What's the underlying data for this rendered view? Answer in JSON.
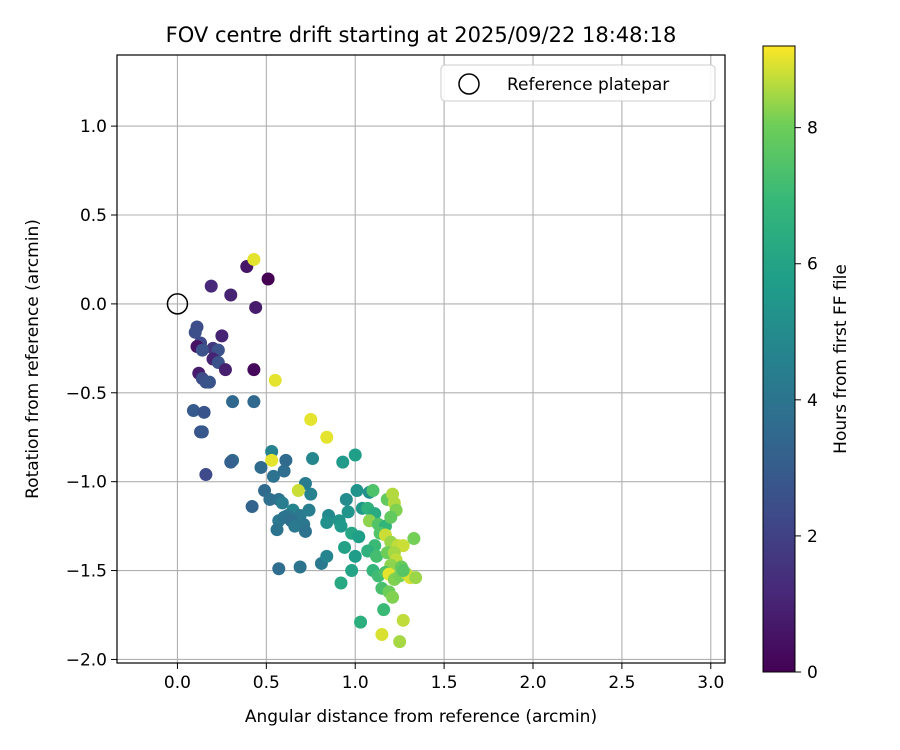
{
  "chart_data": {
    "type": "scatter",
    "title": "FOV centre drift starting at 2025/09/22 18:48:18",
    "xlabel": "Angular distance from reference (arcmin)",
    "ylabel": "Rotation from reference (arcmin)",
    "xlim": [
      -0.34,
      3.08
    ],
    "ylim": [
      -2.02,
      1.4
    ],
    "xticks": [
      0.0,
      0.5,
      1.0,
      1.5,
      2.0,
      2.5,
      3.0
    ],
    "xtick_labels": [
      "0.0",
      "0.5",
      "1.0",
      "1.5",
      "2.0",
      "2.5",
      "3.0"
    ],
    "yticks": [
      -2.0,
      -1.5,
      -1.0,
      -0.5,
      0.0,
      0.5,
      1.0
    ],
    "ytick_labels": [
      "−2.0",
      "−1.5",
      "−1.0",
      "−0.5",
      "0.0",
      "0.5",
      "1.0"
    ],
    "grid": true,
    "legend": {
      "position": "top-right",
      "entries": [
        "Reference platepar"
      ]
    },
    "reference_point": {
      "x": 0.0,
      "y": 0.0
    },
    "colorbar": {
      "label": "Hours from first FF file",
      "range": [
        0,
        9.2
      ],
      "ticks": [
        0,
        2,
        4,
        6,
        8
      ],
      "tick_labels": [
        "0",
        "2",
        "4",
        "6",
        "8"
      ],
      "colormap": "viridis"
    },
    "series": [
      {
        "name": "FOV centre drift",
        "points": [
          [
            0.51,
            0.14,
            0.0
          ],
          [
            0.39,
            0.21,
            0.6
          ],
          [
            0.44,
            -0.02,
            0.8
          ],
          [
            0.3,
            0.05,
            1.0
          ],
          [
            0.19,
            0.1,
            1.2
          ],
          [
            0.11,
            -0.13,
            2.4
          ],
          [
            0.1,
            -0.16,
            2.5
          ],
          [
            0.13,
            -0.22,
            2.3
          ],
          [
            0.25,
            -0.18,
            1.0
          ],
          [
            0.2,
            -0.25,
            1.7
          ],
          [
            0.23,
            -0.26,
            2.6
          ],
          [
            0.11,
            -0.24,
            0.5
          ],
          [
            0.14,
            -0.26,
            2.6
          ],
          [
            0.2,
            -0.31,
            1.0
          ],
          [
            0.23,
            -0.33,
            2.6
          ],
          [
            0.27,
            -0.37,
            0.9
          ],
          [
            0.43,
            -0.37,
            0.2
          ],
          [
            0.12,
            -0.39,
            0.8
          ],
          [
            0.14,
            -0.42,
            2.4
          ],
          [
            0.16,
            -0.44,
            2.6
          ],
          [
            0.18,
            -0.44,
            2.7
          ],
          [
            0.09,
            -0.6,
            2.9
          ],
          [
            0.15,
            -0.61,
            2.7
          ],
          [
            0.13,
            -0.72,
            2.6
          ],
          [
            0.14,
            -0.72,
            2.8
          ],
          [
            0.16,
            -0.96,
            2.3
          ],
          [
            0.31,
            -0.55,
            3.5
          ],
          [
            0.43,
            -0.55,
            3.5
          ],
          [
            0.31,
            -0.88,
            3.6
          ],
          [
            0.3,
            -0.89,
            3.2
          ],
          [
            0.43,
            0.25,
            9.0
          ],
          [
            0.55,
            -0.43,
            9.0
          ],
          [
            0.53,
            -0.83,
            4.6
          ],
          [
            0.53,
            -0.88,
            9.0
          ],
          [
            0.61,
            -0.88,
            3.6
          ],
          [
            0.47,
            -0.92,
            3.6
          ],
          [
            0.6,
            -0.94,
            3.7
          ],
          [
            0.54,
            -0.97,
            3.9
          ],
          [
            0.72,
            -1.01,
            4.3
          ],
          [
            0.49,
            -1.05,
            3.6
          ],
          [
            0.52,
            -1.1,
            3.8
          ],
          [
            0.42,
            -1.14,
            3.3
          ],
          [
            0.57,
            -1.1,
            3.9
          ],
          [
            0.59,
            -1.12,
            4.4
          ],
          [
            0.75,
            -1.07,
            4.6
          ],
          [
            0.65,
            -1.16,
            4.7
          ],
          [
            0.62,
            -1.19,
            4.1
          ],
          [
            0.69,
            -1.19,
            4.2
          ],
          [
            0.74,
            -1.16,
            4.4
          ],
          [
            0.57,
            -1.22,
            4.2
          ],
          [
            0.6,
            -1.2,
            4.0
          ],
          [
            0.64,
            -1.22,
            3.8
          ],
          [
            0.71,
            -1.24,
            4.1
          ],
          [
            0.66,
            -1.25,
            4.2
          ],
          [
            0.72,
            -1.28,
            3.9
          ],
          [
            0.56,
            -1.27,
            4.0
          ],
          [
            0.57,
            -1.49,
            3.7
          ],
          [
            0.69,
            -1.48,
            4.0
          ],
          [
            0.81,
            -1.46,
            4.2
          ],
          [
            0.84,
            -1.42,
            4.7
          ],
          [
            0.68,
            -1.05,
            8.8
          ],
          [
            0.76,
            -0.87,
            4.8
          ],
          [
            0.75,
            -0.65,
            9.0
          ],
          [
            0.84,
            -0.75,
            9.0
          ],
          [
            0.93,
            -0.89,
            5.6
          ],
          [
            1.0,
            -0.85,
            5.8
          ],
          [
            1.01,
            -1.05,
            5.3
          ],
          [
            1.08,
            -1.06,
            5.2
          ],
          [
            0.95,
            -1.1,
            5.0
          ],
          [
            0.85,
            -1.19,
            4.9
          ],
          [
            0.84,
            -1.23,
            5.2
          ],
          [
            0.91,
            -1.22,
            5.3
          ],
          [
            0.96,
            -1.17,
            5.4
          ],
          [
            1.04,
            -1.15,
            5.5
          ],
          [
            0.92,
            -1.25,
            5.6
          ],
          [
            0.98,
            -1.29,
            6.1
          ],
          [
            1.02,
            -1.31,
            5.8
          ],
          [
            0.94,
            -1.37,
            5.9
          ],
          [
            1.0,
            -1.42,
            5.7
          ],
          [
            0.98,
            -1.5,
            6.0
          ],
          [
            0.92,
            -1.57,
            6.2
          ],
          [
            1.03,
            -1.79,
            6.5
          ],
          [
            1.07,
            -1.15,
            6.6
          ],
          [
            1.1,
            -1.05,
            7.4
          ],
          [
            1.11,
            -1.18,
            6.3
          ],
          [
            1.08,
            -1.22,
            8.3
          ],
          [
            1.13,
            -1.24,
            7.5
          ],
          [
            1.17,
            -1.25,
            6.8
          ],
          [
            1.18,
            -1.1,
            7.8
          ],
          [
            1.22,
            -1.12,
            8.6
          ],
          [
            1.23,
            -1.16,
            8.2
          ],
          [
            1.2,
            -1.2,
            7.8
          ],
          [
            1.21,
            -1.07,
            8.6
          ],
          [
            1.14,
            -1.29,
            7.5
          ],
          [
            1.17,
            -1.3,
            8.8
          ],
          [
            1.2,
            -1.34,
            8.4
          ],
          [
            1.24,
            -1.36,
            8.7
          ],
          [
            1.27,
            -1.36,
            8.8
          ],
          [
            1.11,
            -1.36,
            7.0
          ],
          [
            1.07,
            -1.39,
            6.6
          ],
          [
            1.12,
            -1.42,
            7.2
          ],
          [
            1.18,
            -1.4,
            8.0
          ],
          [
            1.22,
            -1.4,
            8.5
          ],
          [
            1.23,
            -1.44,
            8.7
          ],
          [
            1.2,
            -1.47,
            8.3
          ],
          [
            1.26,
            -1.48,
            7.9
          ],
          [
            1.1,
            -1.5,
            6.8
          ],
          [
            1.13,
            -1.53,
            7.1
          ],
          [
            1.17,
            -1.51,
            7.4
          ],
          [
            1.19,
            -1.52,
            9.0
          ],
          [
            1.22,
            -1.55,
            8.2
          ],
          [
            1.25,
            -1.53,
            8.1
          ],
          [
            1.29,
            -1.52,
            8.6
          ],
          [
            1.31,
            -1.54,
            8.9
          ],
          [
            1.15,
            -1.6,
            7.3
          ],
          [
            1.19,
            -1.62,
            8.0
          ],
          [
            1.21,
            -1.65,
            8.2
          ],
          [
            1.16,
            -1.72,
            7.0
          ],
          [
            1.27,
            -1.78,
            8.7
          ],
          [
            1.15,
            -1.86,
            8.9
          ],
          [
            1.25,
            -1.9,
            8.5
          ],
          [
            1.33,
            -1.32,
            8.1
          ],
          [
            1.34,
            -1.54,
            8.4
          ],
          [
            1.27,
            -1.5,
            7.6
          ]
        ]
      }
    ]
  }
}
